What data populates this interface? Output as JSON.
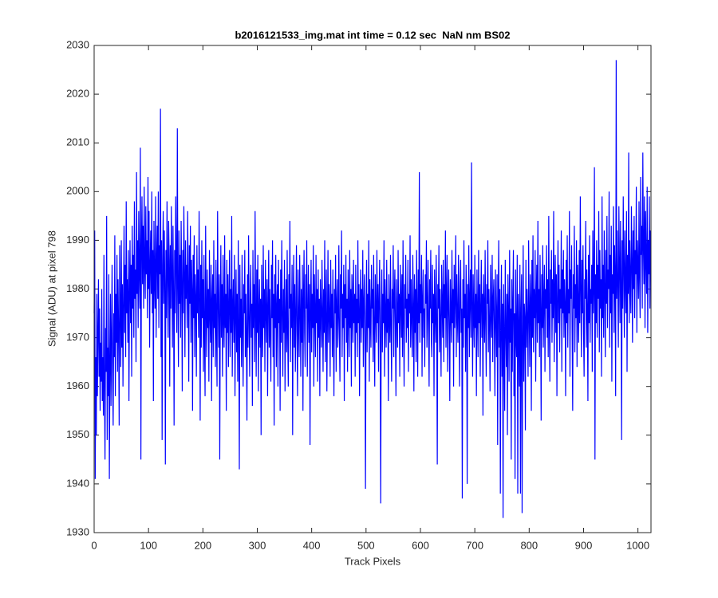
{
  "chart_data": {
    "type": "line",
    "title": "b2016121533_img.mat int time = 0.12 sec  NaN nm BS02",
    "x_label": "Track Pixels",
    "y_label": "Signal (ADU) at pixel 798",
    "xlim": [
      0,
      1024
    ],
    "xticks": [
      0,
      100,
      200,
      300,
      400,
      500,
      600,
      700,
      800,
      900,
      1000
    ],
    "ylim": [
      1930,
      2030
    ],
    "yticks": [
      1930,
      1940,
      1950,
      1960,
      1970,
      1980,
      1990,
      2000,
      2010,
      2020,
      2030
    ],
    "grid": false,
    "series": [
      {
        "color": "#0000ff",
        "values": [
          1975,
          1992,
          1941,
          1966,
          1950,
          1979,
          1958,
          1971,
          1982,
          1962,
          1976,
          1955,
          1969,
          1961,
          1980,
          1957,
          1966,
          1954,
          1987,
          1960,
          1945,
          1972,
          1963,
          1995,
          1949,
          1968,
          1958,
          1983,
          1941,
          1964,
          1979,
          1956,
          1970,
          1985,
          1961,
          1952,
          1975,
          1966,
          1991,
          1958,
          1979,
          1969,
          1987,
          1963,
          1982,
          1971,
          1952,
          1989,
          1976,
          1964,
          1990,
          1968,
          1981,
          1960,
          1977,
          1993,
          1971,
          1985,
          1966,
          1998,
          1975,
          1982,
          1969,
          1988,
          1957,
          1979,
          1990,
          1973,
          1985,
          1962,
          1993,
          1976,
          1987,
          1970,
          1998,
          1978,
          1984,
          1965,
          2004,
          1979,
          1990,
          1972,
          1996,
          1983,
          1976,
          2009,
          1945,
          1988,
          1999,
          1981,
          1993,
          1976,
          2001,
          1985,
          1978,
          1997,
          1983,
          1990,
          1974,
          2003,
          1980,
          1996,
          1968,
          1985,
          1992,
          1979,
          2000,
          1975,
          1988,
          1957,
          1994,
          1982,
          1976,
          1999,
          1970,
          1986,
          1993,
          1978,
          2000,
          1972,
          1989,
          1983,
          2017,
          1966,
          1990,
          1949,
          1985,
          1996,
          1977,
          1992,
          1981,
          1944,
          1988,
          1974,
          1998,
          1983,
          1970,
          1994,
          1986,
          1960,
          1989,
          1976,
          1997,
          1983,
          1968,
          1993,
          1979,
          1952,
          1988,
          1975,
          1999,
          1985,
          1971,
          2013,
          1980,
          1964,
          1992,
          1977,
          1987,
          1970,
          1994,
          1982,
          1959,
          1988,
          1975,
          1997,
          1983,
          1966,
          1990,
          1978,
          1985,
          1972,
          1996,
          1981,
          1961,
          1989,
          1977,
          1993,
          1969,
          1986,
          1980,
          1955,
          1987,
          1974,
          1991,
          1966,
          1983,
          1978,
          1962,
          1989,
          1975,
          1984,
          1970,
          1996,
          1979,
          1953,
          1985,
          1968,
          1990,
          1974,
          1982,
          1963,
          1987,
          1971,
          1958,
          1993,
          1976,
          1966,
          1984,
          1972,
          1980,
          1961,
          1988,
          1975,
          1969,
          1985,
          1957,
          1978,
          1983,
          1966,
          1990,
          1972,
          1979,
          1964,
          1986,
          1973,
          1960,
          1996,
          1978,
          1968,
          1983,
          1945,
          1975,
          1989,
          1970,
          1981,
          1962,
          1987,
          1974,
          1968,
          1991,
          1972,
          1979,
          1955,
          1986,
          1971,
          1983,
          1964,
          1977,
          1988,
          1966,
          1980,
          1971,
          1995,
          1962,
          1976,
          1982,
          1969,
          1987,
          1958,
          1975,
          1984,
          1967,
          1979,
          1961,
          1990,
          1973,
          1943,
          1985,
          1970,
          1978,
          1964,
          1987,
          1972,
          1960,
          1981,
          1975,
          1988,
          1966,
          1979,
          1970,
          1953,
          1983,
          1968,
          1991,
          1974,
          1962,
          1978,
          1985,
          1970,
          1977,
          1956,
          1988,
          1972,
          1981,
          1965,
          1996,
          1975,
          1962,
          1984,
          1971,
          1987,
          1959,
          1976,
          1982,
          1968,
          1978,
          1950,
          1985,
          1973,
          1966,
          1989,
          1972,
          1980,
          1963,
          1986,
          1975,
          1969,
          1982,
          1958,
          1977,
          1988,
          1968,
          1980,
          1971,
          1961,
          1985,
          1974,
          1990,
          1966,
          1979,
          1952,
          1983,
          1972,
          1987,
          1964,
          1976,
          1981,
          1960,
          1986,
          1973,
          1978,
          1955,
          1984,
          1969,
          1990,
          1975,
          1962,
          1980,
          1971,
          1986,
          1959,
          1974,
          1982,
          1967,
          1988,
          1970,
          1960,
          1983,
          1976,
          1994,
          1965,
          1979,
          1972,
          1985,
          1950,
          1977,
          1987,
          1968,
          1981,
          1963,
          1975,
          1989,
          1971,
          1958,
          1984,
          1973,
          1966,
          1987,
          1976,
          1962,
          1980,
          1969,
          1985,
          1955,
          1978,
          1988,
          1971,
          1964,
          1983,
          1976,
          1990,
          1962,
          1974,
          1985,
          1969,
          1981,
          1948,
          1977,
          1986,
          1967,
          1979,
          1972,
          1989,
          1960,
          1983,
          1975,
          1966,
          1987,
          1973,
          1980,
          1961,
          1984,
          1970,
          1978,
          1958,
          1982,
          1974,
          1968,
          1986,
          1976,
          1963,
          1980,
          1971,
          1990,
          1965,
          1977,
          1984,
          1959,
          1973,
          1988,
          1969,
          1981,
          1975,
          1962,
          1986,
          1972,
          1979,
          1966,
          1984,
          1971,
          1958,
          1980,
          1975,
          1987,
          1963,
          1977,
          1982,
          1968,
          1974,
          1989,
          1970,
          1961,
          1983,
          1976,
          1992,
          1966,
          1979,
          1972,
          1985,
          1957,
          1981,
          1974,
          1987,
          1969,
          1978,
          1963,
          1984,
          1975,
          1966,
          1988,
          1972,
          1980,
          1960,
          1983,
          1976,
          1969,
          1986,
          1973,
          1979,
          1962,
          1985,
          1971,
          1978,
          1966,
          1990,
          1973,
          1981,
          1958,
          1976,
          1984,
          1969,
          1980,
          1972,
          1988,
          1964,
          1977,
          1983,
          1970,
          1939,
          1975,
          1986,
          1967,
          1979,
          1972,
          1990,
          1961,
          1982,
          1974,
          1968,
          1985,
          1976,
          1980,
          1965,
          1987,
          1972,
          1960,
          1983,
          1975,
          1969,
          1988,
          1973,
          1981,
          1963,
          1978,
          1986,
          1970,
          1936,
          1976,
          1984,
          1967,
          1979,
          1973,
          1990,
          1962,
          1982,
          1975,
          1968,
          1986,
          1971,
          1978,
          1957,
          1983,
          1974,
          1969,
          1987,
          1972,
          1961,
          1980,
          1976,
          1989,
          1966,
          1978,
          1984,
          1971,
          1958,
          1982,
          1975,
          1968,
          1988,
          1973,
          1979,
          1962,
          1985,
          1977,
          1970,
          1983,
          1966,
          1990,
          1974,
          1960,
          1981,
          1976,
          1987,
          1969,
          1978,
          1972,
          1986,
          1963,
          1979,
          1975,
          1991,
          1968,
          1982,
          1974,
          1966,
          1987,
          1977,
          1959,
          1983,
          1971,
          1980,
          1965,
          1988,
          1976,
          1962,
          1984,
          1973,
          2004,
          1969,
          1981,
          1975,
          1987,
          1962,
          1978,
          1984,
          1970,
          1976,
          1964,
          1983,
          1977,
          1990,
          1968,
          1975,
          1986,
          1972,
          1960,
          1982,
          1976,
          1988,
          1970,
          1966,
          1985,
          1973,
          1979,
          1958,
          1984,
          1975,
          1969,
          1987,
          1974,
          1944,
          1981,
          1976,
          1989,
          1967,
          1980,
          1973,
          1962,
          1985,
          1977,
          1970,
          1986,
          1965,
          1981,
          1974,
          1992,
          1968,
          1979,
          1987,
          1963,
          1976,
          1984,
          1971,
          1957,
          1982,
          1975,
          1969,
          1988,
          1973,
          1980,
          1960,
          1985,
          1972,
          1978,
          1991,
          1966,
          1983,
          1974,
          1969,
          1987,
          1975,
          1960,
          1980,
          1986,
          1971,
          1976,
          1937,
          1982,
          1968,
          1990,
          1974,
          1979,
          1963,
          1985,
          1977,
          1940,
          1981,
          1972,
          1989,
          1966,
          1978,
          1984,
          1970,
          2006,
          1976,
          1962,
          1983,
          1974,
          1968,
          1987,
          1972,
          1979,
          1958,
          1984,
          1975,
          1966,
          1988,
          1973,
          1981,
          1962,
          1977,
          1986,
          1970,
          1979,
          1954,
          1983,
          1976,
          1969,
          1988,
          1974,
          1962,
          1981,
          1977,
          1990,
          1967,
          1980,
          1973,
          1959,
          1985,
          1975,
          1970,
          1987,
          1965,
          1978,
          1982,
          1971,
          1958,
          1984,
          1975,
          1966,
          1983,
          1948,
          1976,
          1990,
          1968,
          1980,
          1938,
          1973,
          1985,
          1962,
          1977,
          1933,
          1981,
          1970,
          1955,
          1986,
          1972,
          1964,
          1979,
          1950,
          1983,
          1975,
          1961,
          1988,
          1969,
          1976,
          1945,
          1982,
          1963,
          1978,
          1988,
          1958,
          1975,
          1941,
          1984,
          1970,
          1966,
          1987,
          1938,
          1979,
          1972,
          1960,
          1985,
          1938,
          1976,
          1983,
          1934,
          1970,
          1989,
          1961,
          1977,
          1974,
          1951,
          1986,
          1968,
          1980,
          1973,
          1962,
          1990,
          1975,
          1964,
          1983,
          1978,
          1955,
          1986,
          1970,
          1991,
          1967,
          1980,
          1974,
          1988,
          1961,
          1978,
          1985,
          1969,
          1994,
          1973,
          1980,
          1966,
          1987,
          1976,
          1953,
          1983,
          1972,
          1989,
          1968,
          1978,
          1985,
          1963,
          1980,
          1976,
          1989,
          1970,
          1982,
          1966,
          1995,
          1975,
          1961,
          1984,
          1977,
          1988,
          1969,
          1982,
          1974,
          1996,
          1965,
          1979,
          1987,
          1971,
          1983,
          1958,
          1978,
          1990,
          1973,
          1985,
          1967,
          1980,
          1976,
          1992,
          1963,
          1984,
          1975,
          1988,
          1970,
          1982,
          1977,
          1958,
          1986,
          1973,
          1991,
          1968,
          1980,
          1975,
          1996,
          1962,
          1984,
          1978,
          1989,
          1971,
          1955,
          1983,
          1976,
          1993,
          1967,
          1981,
          1974,
          1990,
          1964,
          1985,
          1977,
          1969,
          1988,
          1973,
          1999,
          1980,
          1966,
          1986,
          1975,
          1989,
          1971,
          1962,
          1982,
          1978,
          1994,
          1968,
          1984,
          1976,
          1957,
          1987,
          1973,
          1991,
          1969,
          1980,
          1977,
          1985,
          1963,
          1992,
          1975,
          1981,
          2005,
          1945,
          1983,
          1973,
          1990,
          1970,
          1985,
          1978,
          1996,
          1967,
          1988,
          1976,
          1982,
          1962,
          1999,
          1974,
          1985,
          1970,
          1992,
          1980,
          1966,
          1988,
          1977,
          1995,
          1972,
          1984,
          1980,
          2000,
          1968,
          1987,
          1975,
          1993,
          1961,
          1983,
          1979,
          1997,
          1971,
          1989,
          1982,
          1958,
          2027,
          1978,
          1992,
          1980,
          1968,
          1997,
          1985,
          1973,
          1994,
          1982,
          1949,
          1990,
          1976,
          1999,
          1984,
          1970,
          1992,
          1981,
          1975,
          1996,
          1963,
          1987,
          1979,
          2008,
          1973,
          1990,
          1982,
          1975,
          1997,
          1986,
          1969,
          1992,
          1980,
          1995,
          1974,
          1988,
          1983,
          2001,
          1971,
          1990,
          1985,
          1978,
          1998,
          1982,
          1974,
          2003,
          1987,
          1993,
          1976,
          2008,
          1989,
          1981,
          1999,
          1972,
          1996,
          1986,
          1979,
          2001,
          1971,
          1990,
          1983,
          1999,
          1976,
          1992
        ]
      }
    ]
  }
}
